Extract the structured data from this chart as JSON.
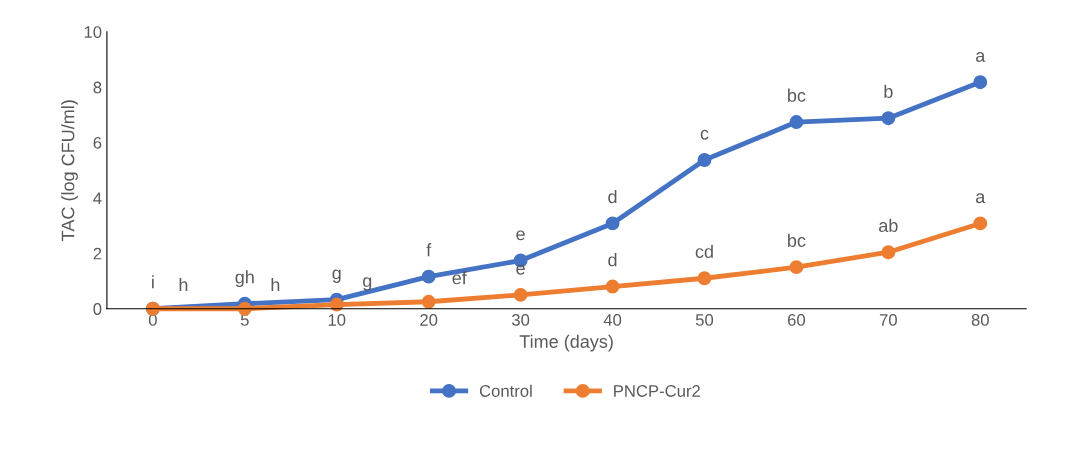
{
  "chart_data": {
    "type": "line",
    "xlabel": "Time (days)",
    "ylabel": "TAC (log CFU/ml)",
    "categories": [
      "0",
      "5",
      "10",
      "20",
      "30",
      "40",
      "50",
      "60",
      "70",
      "80"
    ],
    "series": [
      {
        "name": "Control",
        "color": "#4472c4",
        "values": [
          0,
          0.18,
          0.33,
          1.16,
          1.74,
          3.08,
          5.37,
          6.74,
          6.88,
          8.18
        ]
      },
      {
        "name": "PNCP-Cur2",
        "color": "#ed7d31",
        "values": [
          0,
          0,
          0.15,
          0.25,
          0.5,
          0.8,
          1.1,
          1.5,
          2.04,
          3.08
        ]
      }
    ],
    "ylim": [
      0,
      10
    ],
    "yticks": [
      0,
      2,
      4,
      6,
      8,
      10
    ],
    "grid": false,
    "legend": "bottom",
    "marker": "circle",
    "line_style": "solid",
    "annotations": [
      {
        "text": "i",
        "x": "0",
        "y": 0
      },
      {
        "text": "h",
        "x": "0",
        "y": 0
      },
      {
        "text": "gh",
        "x": "5",
        "y": 0.18
      },
      {
        "text": "h",
        "x": "5",
        "y": 0
      },
      {
        "text": "g",
        "x": "10",
        "y": 0.33
      },
      {
        "text": "g",
        "x": "10",
        "y": 0.15
      },
      {
        "text": "f",
        "x": "20",
        "y": 1.16
      },
      {
        "text": "ef",
        "x": "20",
        "y": 0.25
      },
      {
        "text": "e",
        "x": "30",
        "y": 1.74
      },
      {
        "text": "e",
        "x": "30",
        "y": 0.5
      },
      {
        "text": "d",
        "x": "40",
        "y": 3.08
      },
      {
        "text": "d",
        "x": "40",
        "y": 0.8
      },
      {
        "text": "c",
        "x": "50",
        "y": 5.37
      },
      {
        "text": "cd",
        "x": "50",
        "y": 1.1
      },
      {
        "text": "bc",
        "x": "60",
        "y": 6.74
      },
      {
        "text": "bc",
        "x": "60",
        "y": 1.5
      },
      {
        "text": "b",
        "x": "70",
        "y": 6.88
      },
      {
        "text": "ab",
        "x": "70",
        "y": 2.04
      },
      {
        "text": "a",
        "x": "80",
        "y": 8.18
      },
      {
        "text": "a",
        "x": "80",
        "y": 3.08
      }
    ]
  }
}
